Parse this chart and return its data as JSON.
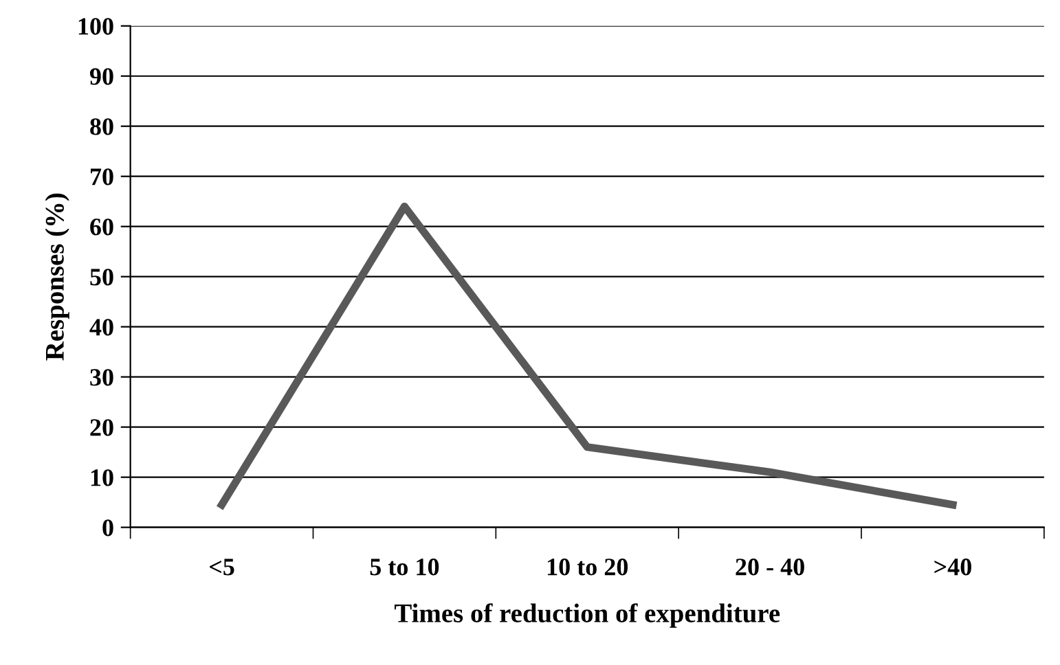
{
  "chart_data": {
    "type": "line",
    "xlabel": "Times of reduction of expenditure",
    "ylabel": "Responses (%)",
    "categories": [
      "<5",
      "5 to 10",
      "10 to 20",
      "20 - 40",
      ">40"
    ],
    "series": [
      {
        "color": "#595959",
        "values": [
          4.5,
          64,
          16,
          11,
          4.5
        ]
      }
    ],
    "ylim": [
      0,
      100
    ],
    "yticks": [
      0,
      10,
      20,
      30,
      40,
      50,
      60,
      70,
      80,
      90,
      100
    ],
    "grid": "y",
    "line_style": "solid"
  }
}
